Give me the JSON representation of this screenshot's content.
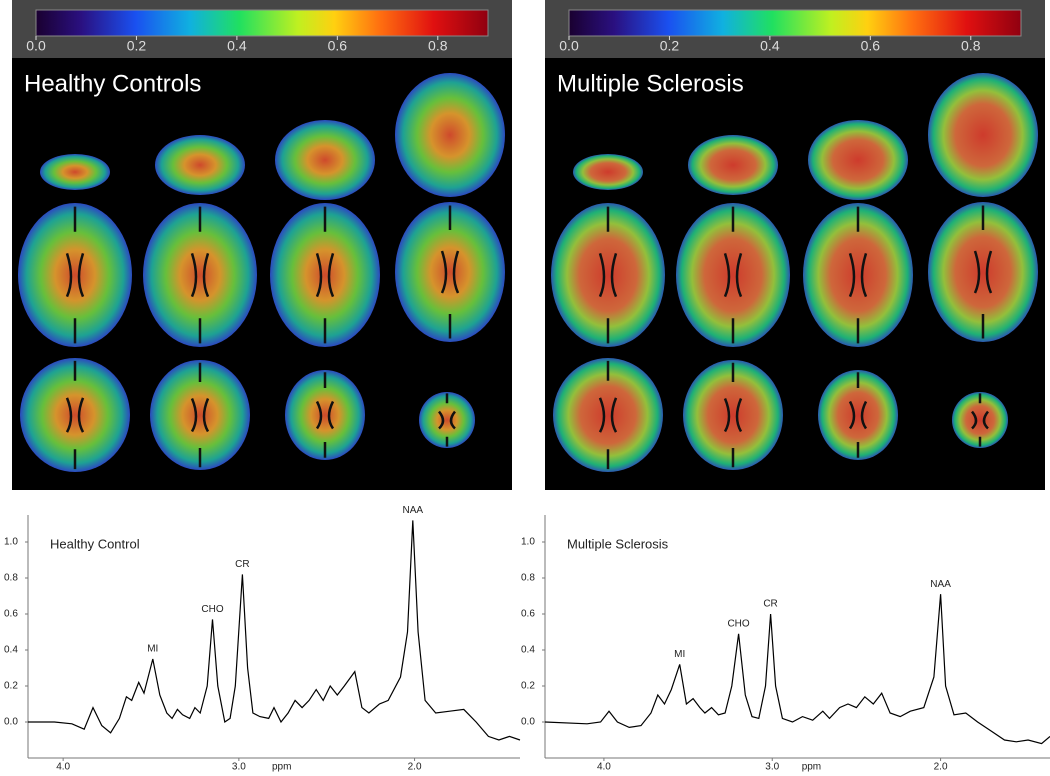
{
  "panels": [
    {
      "title": "Healthy Controls",
      "colorbar": {
        "lim": [
          0,
          0.9
        ],
        "ticks": [
          {
            "value": 0,
            "label": "0.0"
          },
          0.2,
          0.4,
          0.6,
          0.8
        ]
      }
    },
    {
      "title": "Multiple Sclerosis",
      "colorbar": {
        "lim": [
          0,
          0.9
        ],
        "ticks": [
          {
            "value": 0,
            "label": "0.0"
          },
          0.2,
          0.4,
          0.6,
          0.8
        ]
      }
    }
  ],
  "chart_data": [
    {
      "type": "line",
      "title": "Healthy Control",
      "xlabel": "ppm",
      "color": "#000000",
      "x": [
        4.2,
        4.05,
        3.95,
        3.88,
        3.83,
        3.78,
        3.73,
        3.68,
        3.64,
        3.61,
        3.57,
        3.54,
        3.49,
        3.45,
        3.41,
        3.38,
        3.35,
        3.32,
        3.28,
        3.25,
        3.22,
        3.18,
        3.15,
        3.12,
        3.08,
        3.05,
        3.02,
        2.98,
        2.95,
        2.92,
        2.88,
        2.83,
        2.8,
        2.76,
        2.72,
        2.68,
        2.64,
        2.6,
        2.56,
        2.52,
        2.48,
        2.44,
        2.4,
        2.34,
        2.3,
        2.26,
        2.2,
        2.15,
        2.08,
        2.04,
        2.01,
        1.98,
        1.94,
        1.88,
        1.8,
        1.72,
        1.65,
        1.58,
        1.52,
        1.46,
        1.4
      ],
      "values": [
        0.0,
        0.0,
        -0.01,
        -0.04,
        0.08,
        -0.02,
        -0.06,
        0.02,
        0.14,
        0.12,
        0.22,
        0.16,
        0.35,
        0.15,
        0.05,
        0.02,
        0.07,
        0.04,
        0.02,
        0.08,
        0.05,
        0.2,
        0.57,
        0.2,
        0.0,
        0.02,
        0.2,
        0.82,
        0.3,
        0.05,
        0.03,
        0.02,
        0.08,
        0.0,
        0.05,
        0.12,
        0.08,
        0.12,
        0.18,
        0.12,
        0.2,
        0.15,
        0.2,
        0.28,
        0.08,
        0.05,
        0.1,
        0.12,
        0.25,
        0.5,
        1.12,
        0.5,
        0.12,
        0.05,
        0.06,
        0.07,
        0.0,
        -0.08,
        -0.1,
        -0.08,
        -0.1
      ],
      "xlim": [
        4.2,
        1.4
      ],
      "ylim": [
        -0.2,
        1.15
      ],
      "xticks": [
        {
          "value": 4,
          "label": "4.0"
        },
        {
          "value": 3,
          "label": "3.0"
        },
        {
          "value": 2,
          "label": "2.0"
        }
      ],
      "yticks": [
        {
          "value": 0,
          "label": "0.0"
        },
        0.2,
        0.4,
        0.6,
        0.8,
        {
          "value": 1,
          "label": "1.0"
        }
      ],
      "annotations": [
        {
          "text": "MI",
          "x": 3.49,
          "y": 0.35
        },
        {
          "text": "CHO",
          "x": 3.15,
          "y": 0.57
        },
        {
          "text": "CR",
          "x": 2.98,
          "y": 0.82
        },
        {
          "text": "NAA",
          "x": 2.01,
          "y": 1.12
        }
      ]
    },
    {
      "type": "line",
      "title": "Multiple Sclerosis",
      "xlabel": "ppm",
      "color": "#000000",
      "x": [
        4.35,
        4.1,
        4.02,
        3.97,
        3.92,
        3.85,
        3.78,
        3.72,
        3.68,
        3.64,
        3.6,
        3.55,
        3.51,
        3.47,
        3.43,
        3.4,
        3.36,
        3.32,
        3.28,
        3.24,
        3.2,
        3.16,
        3.12,
        3.08,
        3.04,
        3.01,
        2.98,
        2.94,
        2.88,
        2.82,
        2.76,
        2.7,
        2.66,
        2.6,
        2.55,
        2.5,
        2.45,
        2.4,
        2.35,
        2.3,
        2.24,
        2.18,
        2.1,
        2.04,
        2.0,
        1.97,
        1.92,
        1.85,
        1.78,
        1.7,
        1.62,
        1.55,
        1.48,
        1.4,
        1.35
      ],
      "values": [
        0.0,
        -0.01,
        0.0,
        0.06,
        0.0,
        -0.03,
        -0.02,
        0.05,
        0.15,
        0.1,
        0.18,
        0.32,
        0.1,
        0.13,
        0.08,
        0.05,
        0.08,
        0.04,
        0.05,
        0.2,
        0.49,
        0.15,
        0.03,
        0.02,
        0.2,
        0.6,
        0.2,
        0.02,
        0.0,
        0.03,
        0.01,
        0.06,
        0.02,
        0.08,
        0.1,
        0.08,
        0.14,
        0.1,
        0.16,
        0.05,
        0.03,
        0.06,
        0.08,
        0.25,
        0.71,
        0.2,
        0.04,
        0.05,
        0.0,
        -0.05,
        -0.1,
        -0.11,
        -0.1,
        -0.12,
        -0.08
      ],
      "xlim": [
        4.35,
        1.35
      ],
      "ylim": [
        -0.2,
        1.15
      ],
      "xticks": [
        {
          "value": 4,
          "label": "4.0"
        },
        {
          "value": 3,
          "label": "3.0"
        },
        {
          "value": 2,
          "label": "2.0"
        }
      ],
      "yticks": [
        {
          "value": 0,
          "label": "0.0"
        },
        0.2,
        0.4,
        0.6,
        0.8,
        {
          "value": 1,
          "label": "1.0"
        }
      ],
      "annotations": [
        {
          "text": "MI",
          "x": 3.55,
          "y": 0.32
        },
        {
          "text": "CHO",
          "x": 3.2,
          "y": 0.49
        },
        {
          "text": "CR",
          "x": 3.01,
          "y": 0.6
        },
        {
          "text": "NAA",
          "x": 2.0,
          "y": 0.71
        }
      ]
    }
  ]
}
